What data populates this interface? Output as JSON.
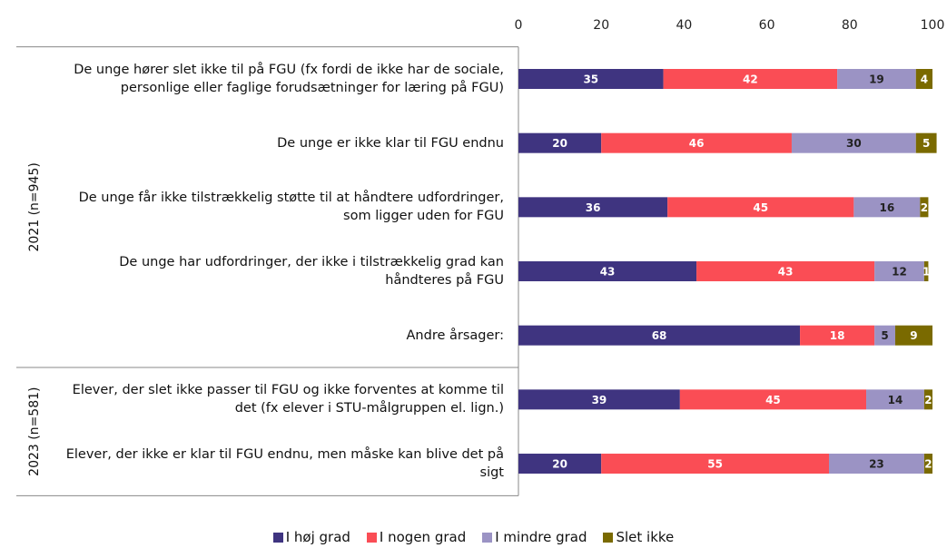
{
  "chart_data": {
    "type": "stacked_bar_horizontal",
    "groups": [
      {
        "label": "2021 (n=945)",
        "categories": [
          "De unge hører slet ikke til på FGU (fx fordi de ikke har de sociale, personlige eller faglige forudsætninger for læring på FGU)",
          "De unge er ikke klar til FGU endnu",
          "De unge får ikke tilstrækkelig støtte til at håndtere udfordringer, som ligger uden for FGU",
          "De unge har udfordringer, der ikke i tilstrækkelig grad kan håndteres på FGU",
          "Andre årsager:"
        ]
      },
      {
        "label": "2023 (n=581)",
        "categories": [
          "Elever, der slet  ikke passer til FGU og ikke forventes at komme til det (fx elever i STU-målgruppen el. lign.)",
          "Elever, der ikke er klar til FGU endnu, men måske kan blive det på sigt"
        ]
      }
    ],
    "series": [
      {
        "name": "I høj grad",
        "color": "#3f3480",
        "values": [
          35,
          20,
          36,
          43,
          68,
          39,
          20
        ]
      },
      {
        "name": "I nogen grad",
        "color": "#fa4d55",
        "values": [
          42,
          46,
          45,
          43,
          18,
          45,
          55
        ]
      },
      {
        "name": "I mindre grad",
        "color": "#9b93c4",
        "values": [
          19,
          30,
          16,
          12,
          5,
          14,
          23
        ]
      },
      {
        "name": "Slet ikke",
        "color": "#7a6a00",
        "values": [
          4,
          5,
          2,
          1,
          9,
          2,
          2
        ]
      }
    ],
    "xlim": [
      0,
      100
    ],
    "xticks": [
      0,
      20,
      40,
      60,
      80,
      100
    ],
    "legend": "bottom"
  }
}
